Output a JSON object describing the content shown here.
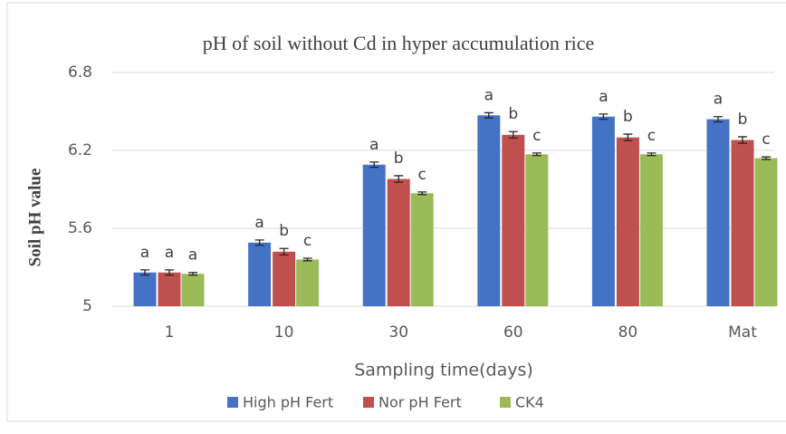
{
  "chart_data": {
    "type": "bar",
    "title": "pH of soil without Cd in hyper accumulation rice",
    "x_label": "Sampling time(days)",
    "y_label": "Soil pH value",
    "categories": [
      "1",
      "10",
      "30",
      "60",
      "80",
      "Mat"
    ],
    "series": [
      {
        "name": "High pH Fert",
        "color": "#4472c4",
        "values": [
          5.26,
          5.49,
          6.09,
          6.47,
          6.46,
          6.44
        ],
        "errors": [
          0.02,
          0.02,
          0.02,
          0.02,
          0.02,
          0.02
        ],
        "letters": [
          "a",
          "a",
          "a",
          "a",
          "a",
          "a"
        ]
      },
      {
        "name": "Nor pH Fert",
        "color": "#c0504d",
        "values": [
          5.26,
          5.42,
          5.98,
          6.32,
          6.3,
          6.28
        ],
        "errors": [
          0.02,
          0.025,
          0.025,
          0.025,
          0.025,
          0.025
        ],
        "letters": [
          "a",
          "b",
          "b",
          "b",
          "b",
          "b"
        ]
      },
      {
        "name": "CK4",
        "color": "#9bbb59",
        "values": [
          5.25,
          5.36,
          5.87,
          6.17,
          6.17,
          6.14
        ],
        "errors": [
          0.01,
          0.01,
          0.01,
          0.01,
          0.01,
          0.01
        ],
        "letters": [
          "a",
          "c",
          "c",
          "c",
          "c",
          "c"
        ]
      }
    ],
    "ylim": [
      5,
      6.8
    ],
    "yticks": [
      5,
      5.6,
      6.2,
      6.8
    ],
    "grid": true
  }
}
